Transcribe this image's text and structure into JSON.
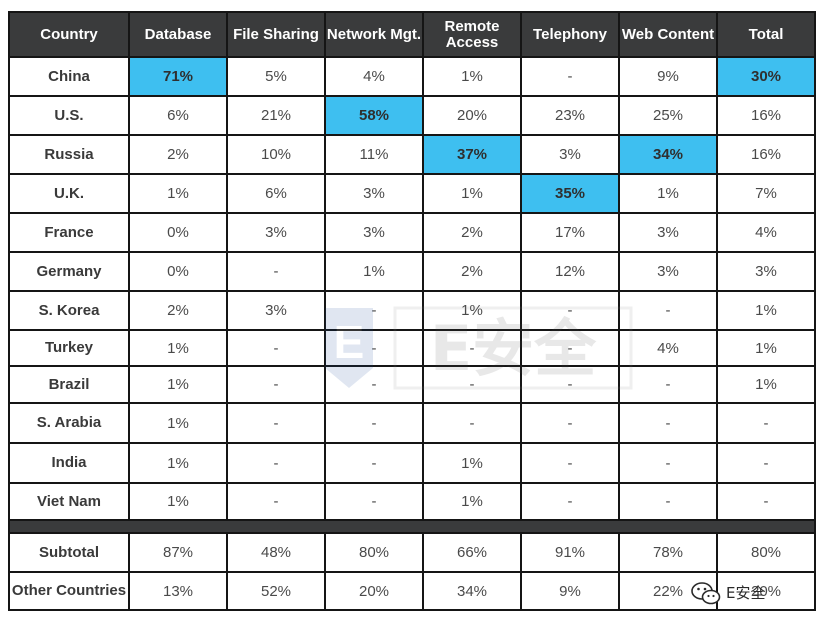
{
  "chart_data": {
    "type": "table",
    "columns": [
      "Country",
      "Database",
      "File Sharing",
      "Network Mgt.",
      "Remote Access",
      "Telephony",
      "Web Content",
      "Total"
    ],
    "rows": [
      {
        "country": "China",
        "values": [
          "71%",
          "5%",
          "4%",
          "1%",
          "-",
          "9%",
          "30%"
        ],
        "highlight": [
          0,
          6
        ]
      },
      {
        "country": "U.S.",
        "values": [
          "6%",
          "21%",
          "58%",
          "20%",
          "23%",
          "25%",
          "16%"
        ],
        "highlight": [
          2
        ]
      },
      {
        "country": "Russia",
        "values": [
          "2%",
          "10%",
          "11%",
          "37%",
          "3%",
          "34%",
          "16%"
        ],
        "highlight": [
          3,
          5
        ]
      },
      {
        "country": "U.K.",
        "values": [
          "1%",
          "6%",
          "3%",
          "1%",
          "35%",
          "1%",
          "7%"
        ],
        "highlight": [
          4
        ]
      },
      {
        "country": "France",
        "values": [
          "0%",
          "3%",
          "3%",
          "2%",
          "17%",
          "3%",
          "4%"
        ],
        "highlight": []
      },
      {
        "country": "Germany",
        "values": [
          "0%",
          "-",
          "1%",
          "2%",
          "12%",
          "3%",
          "3%"
        ],
        "highlight": []
      },
      {
        "country": "S. Korea",
        "values": [
          "2%",
          "3%",
          "-",
          "1%",
          "-",
          "-",
          "1%"
        ],
        "highlight": []
      },
      {
        "country": "Turkey",
        "values": [
          "1%",
          "-",
          "-",
          "-",
          "-",
          "4%",
          "1%"
        ],
        "highlight": []
      },
      {
        "country": "Brazil",
        "values": [
          "1%",
          "-",
          "-",
          "-",
          "-",
          "-",
          "1%"
        ],
        "highlight": []
      },
      {
        "country": "S. Arabia",
        "values": [
          "1%",
          "-",
          "-",
          "-",
          "-",
          "-",
          "-"
        ],
        "highlight": []
      },
      {
        "country": "India",
        "values": [
          "1%",
          "-",
          "-",
          "1%",
          "-",
          "-",
          "-"
        ],
        "highlight": []
      },
      {
        "country": "Viet Nam",
        "values": [
          "1%",
          "-",
          "-",
          "1%",
          "-",
          "-",
          "-"
        ],
        "highlight": []
      }
    ],
    "summary_rows": [
      {
        "country": "Subtotal",
        "values": [
          "87%",
          "48%",
          "80%",
          "66%",
          "91%",
          "78%",
          "80%"
        ]
      },
      {
        "country": "Other Countries",
        "values": [
          "13%",
          "52%",
          "20%",
          "34%",
          "9%",
          "22%",
          "20%"
        ]
      }
    ]
  },
  "colors": {
    "header_bg": "#3a3b3c",
    "highlight": "#3ebff0",
    "grid": "#151515"
  },
  "watermark": {
    "text": "E安全",
    "badge_letter": "E"
  },
  "wechat_mark": {
    "text": "E安全",
    "icon": "wechat-icon"
  }
}
